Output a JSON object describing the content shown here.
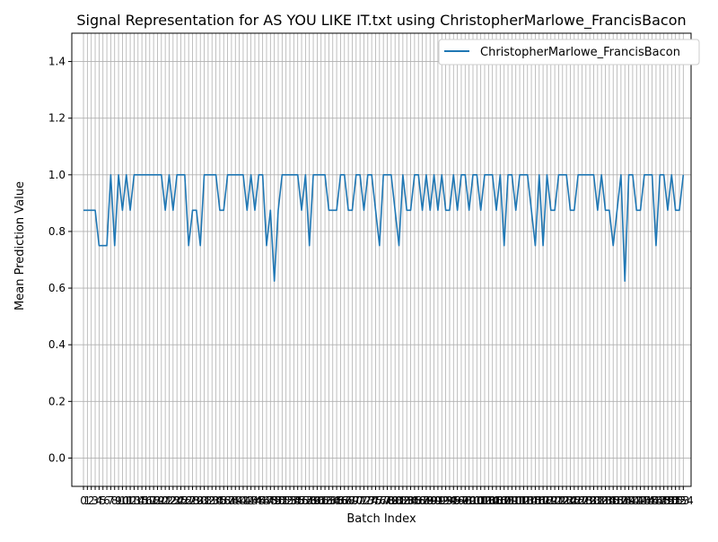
{
  "chart_data": {
    "type": "line",
    "title": "Signal Representation for AS YOU LIKE IT.txt using ChristopherMarlowe_FrancisBacon",
    "xlabel": "Batch Index",
    "ylabel": "Mean Prediction Value",
    "xlim": [
      -3,
      156
    ],
    "ylim": [
      -0.1,
      1.5
    ],
    "y_ticks": [
      0.0,
      0.2,
      0.4,
      0.6,
      0.8,
      1.0,
      1.2,
      1.4
    ],
    "grid": true,
    "legend_position": "top-right",
    "line_color": "#1f77b4",
    "series": [
      {
        "name": "ChristopherMarlowe_FrancisBacon",
        "values": [
          0.875,
          0.875,
          0.875,
          0.875,
          0.75,
          0.75,
          0.75,
          1.0,
          0.75,
          1.0,
          0.875,
          1.0,
          0.875,
          1.0,
          1.0,
          1.0,
          1.0,
          1.0,
          1.0,
          1.0,
          1.0,
          0.875,
          1.0,
          0.875,
          1.0,
          1.0,
          1.0,
          0.75,
          0.875,
          0.875,
          0.75,
          1.0,
          1.0,
          1.0,
          1.0,
          0.875,
          0.875,
          1.0,
          1.0,
          1.0,
          1.0,
          1.0,
          0.875,
          1.0,
          0.875,
          1.0,
          1.0,
          0.75,
          0.875,
          0.625,
          0.875,
          1.0,
          1.0,
          1.0,
          1.0,
          1.0,
          0.875,
          1.0,
          0.75,
          1.0,
          1.0,
          1.0,
          1.0,
          0.875,
          0.875,
          0.875,
          1.0,
          1.0,
          0.875,
          0.875,
          1.0,
          1.0,
          0.875,
          1.0,
          1.0,
          0.875,
          0.75,
          1.0,
          1.0,
          1.0,
          0.875,
          0.75,
          1.0,
          0.875,
          0.875,
          1.0,
          1.0,
          0.875,
          1.0,
          0.875,
          1.0,
          0.875,
          1.0,
          0.875,
          0.875,
          1.0,
          0.875,
          1.0,
          1.0,
          0.875,
          1.0,
          1.0,
          0.875,
          1.0,
          1.0,
          1.0,
          0.875,
          1.0,
          0.75,
          1.0,
          1.0,
          0.875,
          1.0,
          1.0,
          1.0,
          0.875,
          0.75,
          1.0,
          0.75,
          1.0,
          0.875,
          0.875,
          1.0,
          1.0,
          1.0,
          0.875,
          0.875,
          1.0,
          1.0,
          1.0,
          1.0,
          1.0,
          0.875,
          1.0,
          0.875,
          0.875,
          0.75,
          0.875,
          1.0,
          0.625,
          1.0,
          1.0,
          0.875,
          0.875,
          1.0,
          1.0,
          1.0,
          0.75,
          1.0,
          1.0,
          0.875,
          1.0,
          0.875,
          0.875,
          1.0
        ]
      }
    ]
  }
}
